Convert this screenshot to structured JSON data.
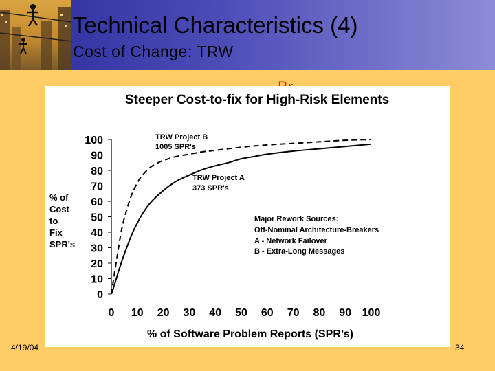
{
  "slide": {
    "title": "Technical Characteristics (4)",
    "subtitle": "Cost of Change: TRW",
    "partial_text": "Br",
    "date": "4/19/04",
    "page": "34",
    "colors": {
      "header_left": "#2A2A9A",
      "header_right": "#8C8CD6",
      "background": "#FFCC66",
      "chart_bg": "#FFFFFF"
    },
    "logo_icon": "rope-walkers-logo-icon"
  },
  "chart_data": {
    "type": "line",
    "title": "Steeper Cost-to-fix for High-Risk Elements",
    "xlabel": "% of Software Problem Reports (SPR’s)",
    "ylabel_lines": [
      "% of",
      "Cost",
      "to",
      "Fix",
      "SPR's"
    ],
    "xlim": [
      0,
      100
    ],
    "ylim": [
      0,
      100
    ],
    "xticks": [
      0,
      10,
      20,
      30,
      40,
      50,
      60,
      70,
      80,
      90,
      100
    ],
    "yticks": [
      0,
      10,
      20,
      30,
      40,
      50,
      60,
      70,
      80,
      90,
      100
    ],
    "grid": false,
    "series": [
      {
        "name": "TRW Project B",
        "sublabel": "1005 SPR's",
        "style": "dashed",
        "x": [
          0,
          2,
          4,
          6,
          8,
          10,
          12,
          15,
          18,
          21,
          25,
          30,
          35,
          40,
          50,
          60,
          70,
          80,
          90,
          100
        ],
        "y": [
          0,
          22,
          42,
          55,
          65,
          72,
          77,
          82,
          85,
          87,
          89,
          90.5,
          92,
          93,
          95,
          96.5,
          97.5,
          98.5,
          99.5,
          100
        ]
      },
      {
        "name": "TRW Project A",
        "sublabel": "373 SPR's",
        "style": "solid",
        "x": [
          0,
          1,
          3,
          5,
          8,
          10,
          12,
          15,
          20,
          25,
          30,
          35,
          40,
          45,
          50,
          55,
          60,
          70,
          80,
          90,
          100
        ],
        "y": [
          0,
          5,
          16,
          26,
          39,
          46,
          52,
          59,
          67,
          73,
          77,
          80.5,
          83,
          85,
          87.5,
          89,
          90.5,
          92.5,
          94,
          95.5,
          97
        ]
      }
    ],
    "annotation": {
      "heading": "Major Rework Sources:",
      "lines": [
        "Off-Nominal Architecture-Breakers",
        "A - Network Failover",
        "B - Extra-Long Messages"
      ]
    }
  }
}
